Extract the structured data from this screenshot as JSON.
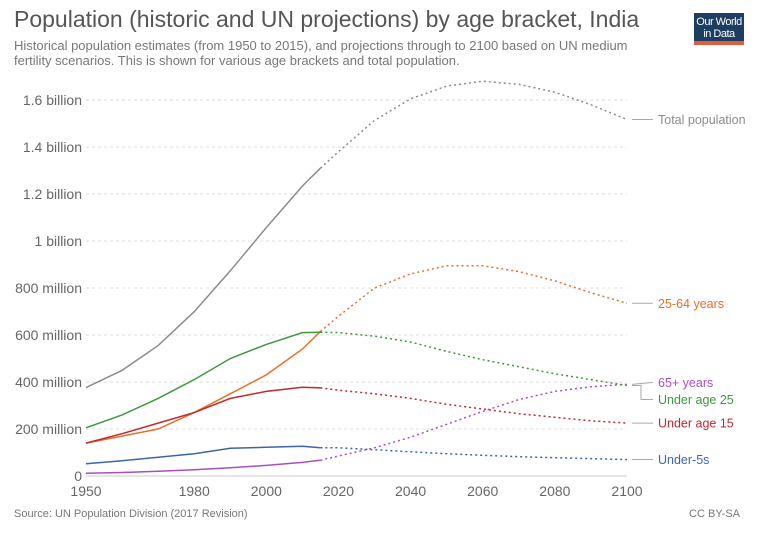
{
  "header": {
    "title": "Population (historic and UN projections) by age bracket, India",
    "subtitle": "Historical population estimates (from 1950 to 2015), and projections through to 2100 based on UN medium fertility scenarios. This is shown for various age brackets and total population.",
    "logo": "Our World in Data"
  },
  "footer": {
    "source": "Source: UN Population Division (2017 Revision)",
    "license": "CC BY-SA"
  },
  "chart_data": {
    "type": "line",
    "title": "Population (historic and UN projections) by age bracket, India",
    "xlim": [
      1950,
      2100
    ],
    "ylim": [
      0,
      1600000000
    ],
    "x_ticks": [
      1950,
      1980,
      2000,
      2020,
      2040,
      2060,
      2080,
      2100
    ],
    "y_ticks": [
      {
        "v": 0,
        "label": "0"
      },
      {
        "v": 200000000,
        "label": "200 million"
      },
      {
        "v": 400000000,
        "label": "400 million"
      },
      {
        "v": 600000000,
        "label": "600 million"
      },
      {
        "v": 800000000,
        "label": "800 million"
      },
      {
        "v": 1000000000,
        "label": "1 billion"
      },
      {
        "v": 1200000000,
        "label": "1.2 billion"
      },
      {
        "v": 1400000000,
        "label": "1.4 billion"
      },
      {
        "v": 1600000000,
        "label": "1.6 billion"
      }
    ],
    "grid": true,
    "legend": "right, end-of-line labels",
    "projection_start": 2015,
    "x": [
      1950,
      1960,
      1970,
      1980,
      1990,
      2000,
      2010,
      2015,
      2020,
      2030,
      2040,
      2050,
      2060,
      2070,
      2080,
      2090,
      2100
    ],
    "unit": "million",
    "series": [
      {
        "name": "Total population",
        "color": "#8c8c8c",
        "values": [
          376,
          450,
          555,
          699,
          873,
          1057,
          1234,
          1310,
          1380,
          1513,
          1605,
          1659,
          1680,
          1667,
          1633,
          1580,
          1517
        ]
      },
      {
        "name": "25-64 years",
        "color": "#e5702a",
        "values": [
          140,
          170,
          200,
          270,
          350,
          430,
          540,
          615,
          680,
          800,
          860,
          895,
          895,
          870,
          830,
          780,
          735
        ]
      },
      {
        "name": "65+ years",
        "color": "#a94fc2",
        "values": [
          12,
          15,
          20,
          27,
          35,
          45,
          58,
          67,
          85,
          120,
          165,
          220,
          275,
          325,
          360,
          380,
          390
        ]
      },
      {
        "name": "Under age 25",
        "color": "#3b9a3b",
        "values": [
          205,
          260,
          330,
          410,
          500,
          560,
          610,
          612,
          610,
          595,
          570,
          530,
          495,
          465,
          435,
          410,
          385
        ]
      },
      {
        "name": "Under age 15",
        "color": "#c0292f",
        "values": [
          140,
          180,
          225,
          270,
          330,
          360,
          378,
          375,
          365,
          350,
          330,
          305,
          285,
          265,
          250,
          235,
          225
        ]
      },
      {
        "name": "Under-5s",
        "color": "#3b66a8",
        "values": [
          52,
          65,
          80,
          95,
          118,
          122,
          127,
          120,
          120,
          112,
          103,
          95,
          88,
          82,
          78,
          74,
          70
        ]
      }
    ]
  }
}
